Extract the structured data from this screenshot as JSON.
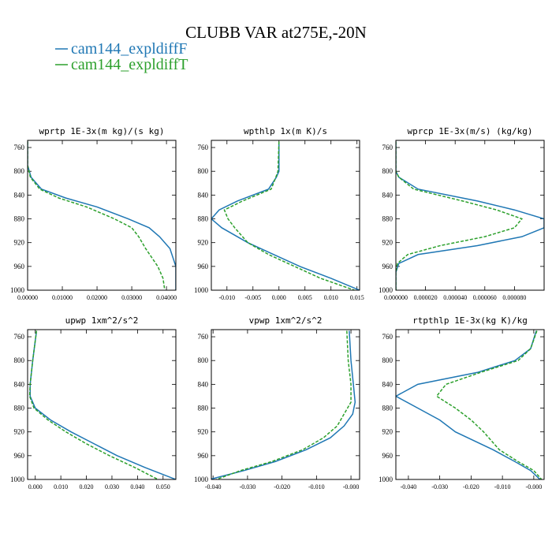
{
  "title": "CLUBB VAR at275E,-20N",
  "legend": [
    {
      "name": "cam144_expldiffF",
      "color": "#1f77b4",
      "dash": false
    },
    {
      "name": "cam144_expldiffT",
      "color": "#2ca02c",
      "dash": true
    }
  ],
  "chart_data": [
    {
      "type": "line",
      "title": "wprtp  1E-3x(m kg)/(s kg)",
      "y_inverted": true,
      "y": [
        750,
        790,
        810,
        830,
        845,
        860,
        880,
        895,
        910,
        930,
        960,
        980,
        1000
      ],
      "ylim": [
        748,
        1000
      ],
      "yticks": [
        760,
        800,
        840,
        880,
        920,
        960,
        1000
      ],
      "xlim": [
        0,
        0.0427
      ],
      "xticks": [
        {
          "value": 0,
          "label": "0.00000"
        },
        {
          "value": 0.01,
          "label": "0.01000"
        },
        {
          "value": 0.02,
          "label": "0.02000"
        },
        {
          "value": 0.03,
          "label": "0.03000"
        },
        {
          "value": 0.04,
          "label": "0.04000"
        }
      ],
      "series": [
        {
          "values": [
            0,
            0,
            0.001,
            0.004,
            0.011,
            0.02,
            0.029,
            0.035,
            0.038,
            0.041,
            0.0427,
            0.0427,
            0.0427
          ]
        },
        {
          "values": [
            0,
            0,
            0.0008,
            0.0035,
            0.009,
            0.017,
            0.025,
            0.03,
            0.032,
            0.034,
            0.0375,
            0.039,
            0.0395
          ]
        }
      ]
    },
    {
      "type": "line",
      "title": "wpthlp  1x(m K)/s",
      "y_inverted": true,
      "y": [
        750,
        800,
        810,
        830,
        850,
        865,
        880,
        895,
        920,
        940,
        960,
        980,
        1000
      ],
      "ylim": [
        748,
        1000
      ],
      "yticks": [
        760,
        800,
        840,
        880,
        920,
        960,
        1000
      ],
      "xlim": [
        -0.013,
        0.0155
      ],
      "xticks": [
        {
          "value": -0.01,
          "label": "-0.010"
        },
        {
          "value": -0.005,
          "label": "-0.005"
        },
        {
          "value": 0,
          "label": "0.000"
        },
        {
          "value": 0.005,
          "label": "0.005"
        },
        {
          "value": 0.01,
          "label": "0.010"
        },
        {
          "value": 0.015,
          "label": "0.015"
        }
      ],
      "series": [
        {
          "values": [
            0,
            0,
            -0.0005,
            -0.002,
            -0.008,
            -0.0115,
            -0.013,
            -0.011,
            -0.006,
            -0.001,
            0.004,
            0.01,
            0.0155
          ]
        },
        {
          "values": [
            0,
            -0.0002,
            -0.0006,
            -0.0015,
            -0.007,
            -0.0105,
            -0.0098,
            -0.0085,
            -0.006,
            -0.002,
            0.003,
            0.008,
            0.0145
          ]
        }
      ]
    },
    {
      "type": "line",
      "title": "wprcp  1E-3x(m/s) (kg/kg)",
      "y_inverted": true,
      "y": [
        750,
        800,
        810,
        830,
        850,
        865,
        880,
        895,
        910,
        925,
        940,
        955,
        970,
        1000
      ],
      "ylim": [
        748,
        1000
      ],
      "yticks": [
        760,
        800,
        840,
        880,
        920,
        960,
        1000
      ],
      "xlim": [
        0,
        0.0001
      ],
      "xticks": [
        {
          "value": 0,
          "label": "0.000000"
        },
        {
          "value": 2e-05,
          "label": "0.000020"
        },
        {
          "value": 4e-05,
          "label": "0.000040"
        },
        {
          "value": 6e-05,
          "label": "0.000060"
        },
        {
          "value": 8e-05,
          "label": "0.000080"
        }
      ],
      "series": [
        {
          "values": [
            0,
            0,
            2e-06,
            1.5e-05,
            5.5e-05,
            8e-05,
            0.0001,
            0.0001,
            8.5e-05,
            5.5e-05,
            1.5e-05,
            2e-06,
            0,
            0
          ]
        },
        {
          "values": [
            0,
            0,
            2e-06,
            1.2e-05,
            4.5e-05,
            6.8e-05,
            8.5e-05,
            8e-05,
            6e-05,
            3e-05,
            8e-06,
            1e-06,
            0,
            0
          ]
        }
      ]
    },
    {
      "type": "line",
      "title": "upwp  1xm^2/s^2",
      "y_inverted": true,
      "y": [
        750,
        800,
        840,
        860,
        880,
        900,
        920,
        940,
        960,
        980,
        1000
      ],
      "ylim": [
        748,
        1000
      ],
      "yticks": [
        760,
        800,
        840,
        880,
        920,
        960,
        1000
      ],
      "xlim": [
        -0.003,
        0.055
      ],
      "xticks": [
        {
          "value": 0,
          "label": "0.000"
        },
        {
          "value": 0.01,
          "label": "0.010"
        },
        {
          "value": 0.02,
          "label": "0.020"
        },
        {
          "value": 0.03,
          "label": "0.030"
        },
        {
          "value": 0.04,
          "label": "0.040"
        },
        {
          "value": 0.05,
          "label": "0.050"
        }
      ],
      "series": [
        {
          "values": [
            0.0005,
            -0.001,
            -0.002,
            -0.002,
            0,
            0.006,
            0.014,
            0.023,
            0.032,
            0.043,
            0.055
          ]
        },
        {
          "values": [
            0.0005,
            -0.001,
            -0.002,
            -0.0022,
            -0.0005,
            0.005,
            0.012,
            0.02,
            0.029,
            0.039,
            0.048
          ]
        }
      ]
    },
    {
      "type": "line",
      "title": "vpwp  1xm^2/s^2",
      "y_inverted": true,
      "y": [
        750,
        800,
        840,
        870,
        890,
        910,
        930,
        950,
        970,
        985,
        1000
      ],
      "ylim": [
        748,
        1000
      ],
      "yticks": [
        760,
        800,
        840,
        880,
        920,
        960,
        1000
      ],
      "xlim": [
        -0.0405,
        0.0025
      ],
      "xticks": [
        {
          "value": -0.04,
          "label": "-0.040"
        },
        {
          "value": -0.03,
          "label": "-0.030"
        },
        {
          "value": -0.02,
          "label": "-0.020"
        },
        {
          "value": -0.01,
          "label": "-0.010"
        },
        {
          "value": 0,
          "label": "-0.000"
        }
      ],
      "series": [
        {
          "values": [
            -0.0005,
            0,
            0.0007,
            0.0012,
            0.0005,
            -0.002,
            -0.006,
            -0.013,
            -0.022,
            -0.031,
            -0.041
          ]
        },
        {
          "values": [
            -0.0012,
            -0.0008,
            0,
            0,
            -0.002,
            -0.004,
            -0.008,
            -0.014,
            -0.023,
            -0.032,
            -0.039
          ]
        }
      ]
    },
    {
      "type": "line",
      "title": "rtpthlp  1E-3x(kg K)/kg",
      "y_inverted": true,
      "y": [
        750,
        780,
        800,
        820,
        840,
        860,
        880,
        900,
        920,
        950,
        970,
        985,
        1000
      ],
      "ylim": [
        748,
        1000
      ],
      "yticks": [
        760,
        800,
        840,
        880,
        920,
        960,
        1000
      ],
      "xlim": [
        -0.044,
        0.0033
      ],
      "xticks": [
        {
          "value": -0.04,
          "label": "-0.040"
        },
        {
          "value": -0.03,
          "label": "-0.030"
        },
        {
          "value": -0.02,
          "label": "-0.020"
        },
        {
          "value": -0.01,
          "label": "-0.010"
        },
        {
          "value": 0,
          "label": "-0.000"
        }
      ],
      "series": [
        {
          "values": [
            0.0008,
            -0.001,
            -0.006,
            -0.018,
            -0.037,
            -0.044,
            -0.037,
            -0.03,
            -0.025,
            -0.013,
            -0.006,
            -0.001,
            0.002
          ]
        },
        {
          "values": [
            0.001,
            -0.001,
            -0.005,
            -0.017,
            -0.028,
            -0.031,
            -0.025,
            -0.02,
            -0.016,
            -0.011,
            -0.005,
            0,
            0.0025
          ]
        }
      ]
    }
  ]
}
